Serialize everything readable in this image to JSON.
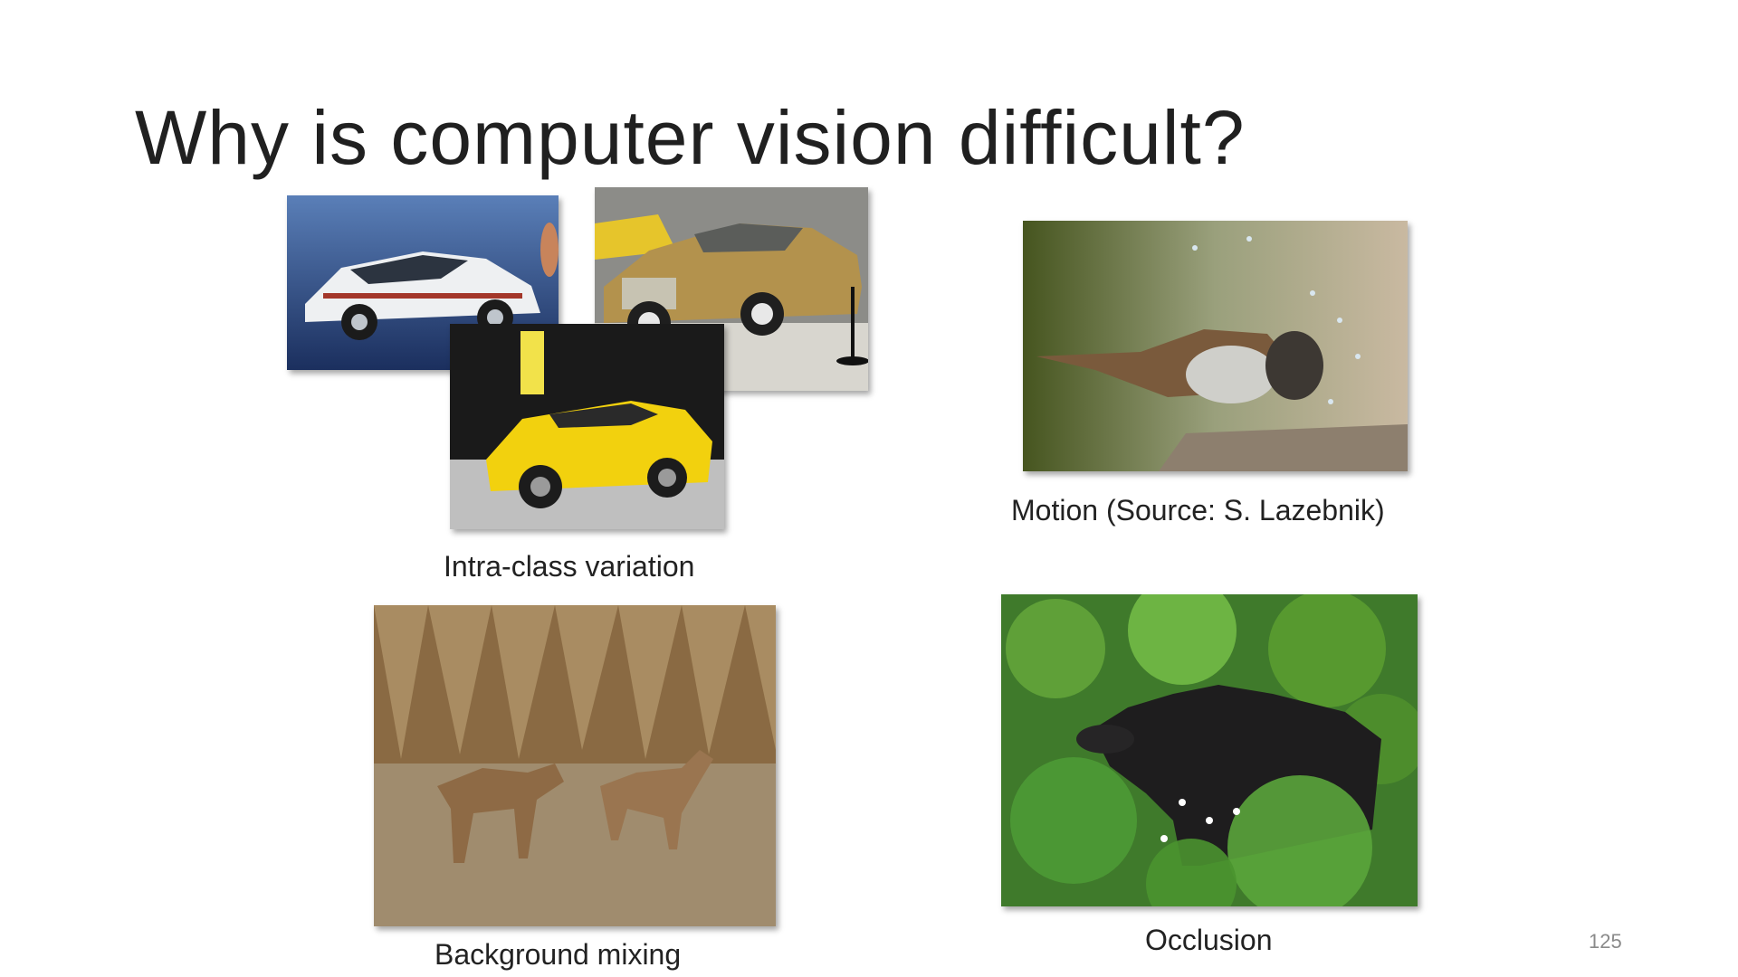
{
  "slide": {
    "title": "Why is computer vision difficult?",
    "page_number": "125"
  },
  "panels": [
    {
      "caption": "Intra-class variation",
      "images": [
        "white-hatchback-car-photo",
        "gold-vintage-car-photo",
        "yellow-sports-car-photo"
      ]
    },
    {
      "caption": "Motion (Source: S. Lazebnik)",
      "images": [
        "bird-shaking-head-photo"
      ]
    },
    {
      "caption": "Background mixing",
      "images": [
        "coyotes-in-field-photo"
      ]
    },
    {
      "caption": "Occlusion",
      "images": [
        "cow-in-bushes-photo"
      ]
    }
  ]
}
